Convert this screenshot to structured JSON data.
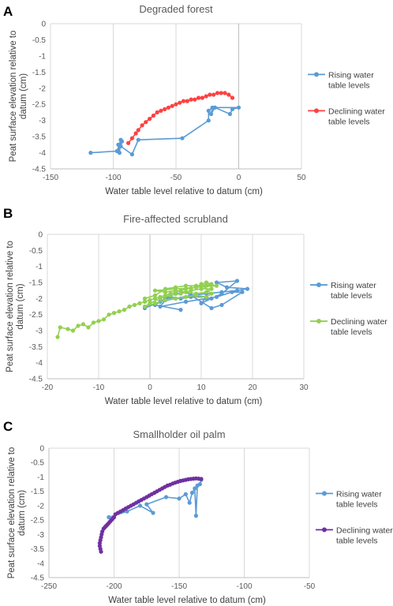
{
  "chart_data": [
    {
      "type": "scatter",
      "panel": "A",
      "title": "Degraded forest",
      "xlabel": "Water table level relative to datum (cm)",
      "ylabel": "Peat surface elevation relative to datum (cm)",
      "xlim": [
        -150,
        50
      ],
      "ylim": [
        -4.5,
        0
      ],
      "xticks": [
        -150,
        -100,
        -50,
        0,
        50
      ],
      "yticks": [
        0,
        -0.5,
        -1,
        -1.5,
        -2,
        -2.5,
        -3,
        -3.5,
        -4,
        -4.5
      ],
      "xticklabels": [
        "-150",
        "-100",
        "-50",
        "0",
        "50"
      ],
      "yticklabels": [
        "0",
        "-0.5",
        "-1",
        "-1.5",
        "-2",
        "-2.5",
        "-3",
        "-3.5",
        "-4",
        "-4.5"
      ],
      "grid": "vertical",
      "legend_position": "right",
      "series": [
        {
          "name": "Rising water table levels",
          "color": "#5b9bd5",
          "points": [
            [
              -118,
              -4.0
            ],
            [
              -97,
              -3.95
            ],
            [
              -94,
              -3.6
            ],
            [
              -95,
              -4.0
            ],
            [
              -96,
              -3.75
            ],
            [
              -93,
              -3.65
            ],
            [
              -94,
              -3.8
            ],
            [
              -85,
              -4.05
            ],
            [
              -80,
              -3.6
            ],
            [
              -45,
              -3.55
            ],
            [
              -24,
              -3.0
            ],
            [
              -24,
              -2.7
            ],
            [
              -21,
              -2.6
            ],
            [
              -22,
              -2.8
            ],
            [
              -19,
              -2.6
            ],
            [
              -7,
              -2.8
            ],
            [
              -5,
              -2.65
            ],
            [
              0,
              -2.6
            ],
            [
              -19,
              -2.6
            ]
          ]
        },
        {
          "name": "Declining water table levels",
          "color": "#ff4040",
          "points": [
            [
              -88,
              -3.7
            ],
            [
              -85,
              -3.55
            ],
            [
              -82,
              -3.4
            ],
            [
              -80,
              -3.3
            ],
            [
              -77,
              -3.15
            ],
            [
              -74,
              -3.05
            ],
            [
              -71,
              -2.95
            ],
            [
              -68,
              -2.85
            ],
            [
              -65,
              -2.75
            ],
            [
              -62,
              -2.7
            ],
            [
              -59,
              -2.65
            ],
            [
              -56,
              -2.6
            ],
            [
              -53,
              -2.55
            ],
            [
              -50,
              -2.5
            ],
            [
              -47,
              -2.45
            ],
            [
              -44,
              -2.4
            ],
            [
              -41,
              -2.4
            ],
            [
              -38,
              -2.35
            ],
            [
              -35,
              -2.35
            ],
            [
              -32,
              -2.3
            ],
            [
              -29,
              -2.3
            ],
            [
              -26,
              -2.25
            ],
            [
              -23,
              -2.2
            ],
            [
              -20,
              -2.2
            ],
            [
              -17,
              -2.15
            ],
            [
              -14,
              -2.15
            ],
            [
              -11,
              -2.15
            ],
            [
              -8,
              -2.2
            ],
            [
              -5,
              -2.3
            ]
          ]
        }
      ]
    },
    {
      "type": "scatter",
      "panel": "B",
      "title": "Fire-affected scrubland",
      "xlabel": "Water table level relative to datum (cm)",
      "ylabel": "Peat surface elevation relative to datum (cm)",
      "xlim": [
        -20,
        30
      ],
      "ylim": [
        -4.5,
        0
      ],
      "xticks": [
        -20,
        -10,
        0,
        10,
        20,
        30
      ],
      "yticks": [
        0,
        -0.5,
        -1,
        -1.5,
        -2,
        -2.5,
        -3,
        -3.5,
        -4,
        -4.5
      ],
      "xticklabels": [
        "-20",
        "-10",
        "0",
        "10",
        "20",
        "30"
      ],
      "yticklabels": [
        "0",
        "-0.5",
        "-1",
        "-1.5",
        "-2",
        "-2.5",
        "-3",
        "-3.5",
        "-4",
        "-4.5"
      ],
      "grid": "vertical",
      "legend_position": "right",
      "series": [
        {
          "name": "Rising water table levels",
          "color": "#5b9bd5",
          "points": [
            [
              -1,
              -2.3
            ],
            [
              2,
              -2.1
            ],
            [
              5,
              -2.0
            ],
            [
              8,
              -1.9
            ],
            [
              11,
              -1.85
            ],
            [
              14,
              -1.8
            ],
            [
              17,
              -1.75
            ],
            [
              19,
              -1.7
            ],
            [
              15,
              -1.65
            ],
            [
              13,
              -1.5
            ],
            [
              17,
              -1.45
            ],
            [
              14,
              -1.85
            ],
            [
              12,
              -2.0
            ],
            [
              10,
              -2.15
            ],
            [
              11,
              -1.95
            ],
            [
              8,
              -1.95
            ],
            [
              6,
              -2.0
            ],
            [
              4,
              -1.95
            ],
            [
              3,
              -2.05
            ],
            [
              2,
              -2.25
            ],
            [
              7,
              -2.1
            ],
            [
              11,
              -2.0
            ],
            [
              13,
              -1.95
            ],
            [
              16,
              -1.8
            ],
            [
              18,
              -1.8
            ],
            [
              14,
              -2.2
            ],
            [
              12,
              -2.3
            ],
            [
              7,
              -1.8
            ],
            [
              5,
              -1.85
            ],
            [
              3,
              -2.0
            ],
            [
              1,
              -2.2
            ],
            [
              6,
              -2.35
            ]
          ]
        },
        {
          "name": "Declining water table levels",
          "color": "#92d050",
          "points": [
            [
              -18,
              -3.2
            ],
            [
              -17.5,
              -2.9
            ],
            [
              -16,
              -2.95
            ],
            [
              -15,
              -3.0
            ],
            [
              -14,
              -2.85
            ],
            [
              -13,
              -2.8
            ],
            [
              -12,
              -2.9
            ],
            [
              -11,
              -2.75
            ],
            [
              -10,
              -2.7
            ],
            [
              -9,
              -2.65
            ],
            [
              -8,
              -2.5
            ],
            [
              -7,
              -2.45
            ],
            [
              -6,
              -2.4
            ],
            [
              -5,
              -2.35
            ],
            [
              -4,
              -2.25
            ],
            [
              -3,
              -2.2
            ],
            [
              -2,
              -2.15
            ],
            [
              -1,
              -2.1
            ],
            [
              0,
              -2.05
            ],
            [
              1,
              -2.0
            ],
            [
              2,
              -1.95
            ],
            [
              3,
              -1.9
            ],
            [
              4,
              -1.85
            ],
            [
              5,
              -1.8
            ],
            [
              6,
              -1.75
            ],
            [
              7,
              -1.7
            ],
            [
              8,
              -1.68
            ],
            [
              9,
              -1.65
            ],
            [
              10,
              -1.62
            ],
            [
              11,
              -1.6
            ],
            [
              12,
              -1.58
            ],
            [
              13,
              -1.6
            ],
            [
              1,
              -1.75
            ],
            [
              3,
              -1.8
            ],
            [
              5,
              -1.75
            ],
            [
              7,
              -1.8
            ],
            [
              9,
              -1.85
            ],
            [
              11,
              -1.8
            ],
            [
              12,
              -1.7
            ],
            [
              10,
              -1.7
            ],
            [
              8,
              -1.75
            ],
            [
              6,
              -1.85
            ],
            [
              4,
              -1.9
            ],
            [
              2,
              -2.0
            ],
            [
              0,
              -2.15
            ],
            [
              -1,
              -2.25
            ],
            [
              1,
              -2.15
            ],
            [
              3,
              -2.05
            ],
            [
              5,
              -2.0
            ],
            [
              7,
              -1.95
            ],
            [
              9,
              -1.9
            ],
            [
              11,
              -1.95
            ],
            [
              12,
              -1.85
            ],
            [
              10,
              -1.55
            ],
            [
              11,
              -1.5
            ],
            [
              12,
              -1.55
            ],
            [
              9,
              -1.6
            ],
            [
              7,
              -1.6
            ],
            [
              5,
              -1.65
            ],
            [
              3,
              -1.7
            ],
            [
              1,
              -1.9
            ],
            [
              -1,
              -2.0
            ]
          ]
        }
      ]
    },
    {
      "type": "scatter",
      "panel": "C",
      "title": "Smallholder oil palm",
      "xlabel": "Water table level relative to datum (cm)",
      "ylabel": "Peat surface elevation relative to datum (cm)",
      "xlim": [
        -250,
        -50
      ],
      "ylim": [
        -4.5,
        0
      ],
      "xticks": [
        -250,
        -200,
        -150,
        -100,
        -50
      ],
      "yticks": [
        0,
        -0.5,
        -1,
        -1.5,
        -2,
        -2.5,
        -3,
        -3.5,
        -4,
        -4.5
      ],
      "xticklabels": [
        "-250",
        "-200",
        "-150",
        "-100",
        "-50"
      ],
      "yticklabels": [
        "0",
        "-0.5",
        "-1",
        "-1.5",
        "-2",
        "-2.5",
        "-3",
        "-3.5",
        "-4",
        "-4.5"
      ],
      "grid": "vertical",
      "legend_position": "right",
      "series": [
        {
          "name": "Rising water table levels",
          "color": "#5b9bd5",
          "points": [
            [
              -204,
              -2.4
            ],
            [
              -190,
              -2.2
            ],
            [
              -180,
              -2.0
            ],
            [
              -170,
              -2.25
            ],
            [
              -175,
              -1.95
            ],
            [
              -160,
              -1.7
            ],
            [
              -150,
              -1.75
            ],
            [
              -145,
              -1.6
            ],
            [
              -142,
              -1.9
            ],
            [
              -140,
              -1.55
            ],
            [
              -138,
              -1.4
            ],
            [
              -137,
              -2.35
            ],
            [
              -136,
              -1.3
            ],
            [
              -134,
              -1.25
            ],
            [
              -133,
              -1.1
            ]
          ]
        },
        {
          "name": "Declining water table levels",
          "color": "#7030a0",
          "points": [
            [
              -210,
              -3.6
            ],
            [
              -210.5,
              -3.5
            ],
            [
              -211,
              -3.4
            ],
            [
              -211,
              -3.3
            ],
            [
              -210.5,
              -3.2
            ],
            [
              -210,
              -3.1
            ],
            [
              -209.5,
              -3.0
            ],
            [
              -209,
              -2.9
            ],
            [
              -208,
              -2.8
            ],
            [
              -207,
              -2.75
            ],
            [
              -206,
              -2.7
            ],
            [
              -205,
              -2.65
            ],
            [
              -204,
              -2.6
            ],
            [
              -203,
              -2.55
            ],
            [
              -202,
              -2.5
            ],
            [
              -201,
              -2.45
            ],
            [
              -200,
              -2.4
            ],
            [
              -199,
              -2.3
            ],
            [
              -197,
              -2.25
            ],
            [
              -195,
              -2.2
            ],
            [
              -193,
              -2.15
            ],
            [
              -191,
              -2.1
            ],
            [
              -189,
              -2.05
            ],
            [
              -187,
              -2.0
            ],
            [
              -185,
              -1.95
            ],
            [
              -183,
              -1.9
            ],
            [
              -181,
              -1.85
            ],
            [
              -179,
              -1.8
            ],
            [
              -177,
              -1.75
            ],
            [
              -175,
              -1.7
            ],
            [
              -173,
              -1.65
            ],
            [
              -171,
              -1.6
            ],
            [
              -169,
              -1.55
            ],
            [
              -167,
              -1.5
            ],
            [
              -165,
              -1.45
            ],
            [
              -163,
              -1.4
            ],
            [
              -161,
              -1.35
            ],
            [
              -159,
              -1.3
            ],
            [
              -157,
              -1.27
            ],
            [
              -155,
              -1.23
            ],
            [
              -153,
              -1.2
            ],
            [
              -151,
              -1.17
            ],
            [
              -149,
              -1.14
            ],
            [
              -147,
              -1.12
            ],
            [
              -145,
              -1.1
            ],
            [
              -143,
              -1.08
            ],
            [
              -141,
              -1.07
            ],
            [
              -139,
              -1.06
            ],
            [
              -137,
              -1.05
            ],
            [
              -135,
              -1.06
            ],
            [
              -133,
              -1.07
            ]
          ]
        }
      ]
    }
  ]
}
